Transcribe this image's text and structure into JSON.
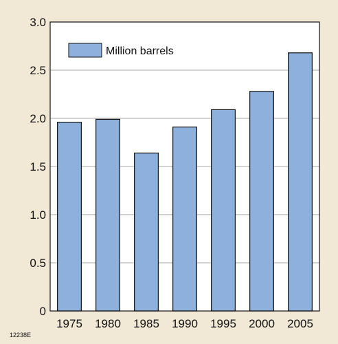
{
  "figure_code": "12238E",
  "colors": {
    "bar_fill": "#8eb0dc",
    "bar_stroke": "#111111",
    "plot_background": "#ffffff",
    "page_background": "#f1e9d6",
    "gridline": "#888888"
  },
  "chart_data": {
    "type": "bar",
    "title": "",
    "xlabel": "",
    "ylabel": "",
    "categories": [
      "1975",
      "1980",
      "1985",
      "1990",
      "1995",
      "2000",
      "2005"
    ],
    "series": [
      {
        "name": "Million barrels",
        "values": [
          1.96,
          1.99,
          1.64,
          1.91,
          2.09,
          2.28,
          2.68
        ]
      }
    ],
    "ylim": [
      0,
      3.0
    ],
    "yticks": [
      "0",
      "0.5",
      "1.0",
      "1.5",
      "2.0",
      "2.5",
      "3.0"
    ],
    "grid": "horizontal",
    "legend_position": "top-left"
  }
}
